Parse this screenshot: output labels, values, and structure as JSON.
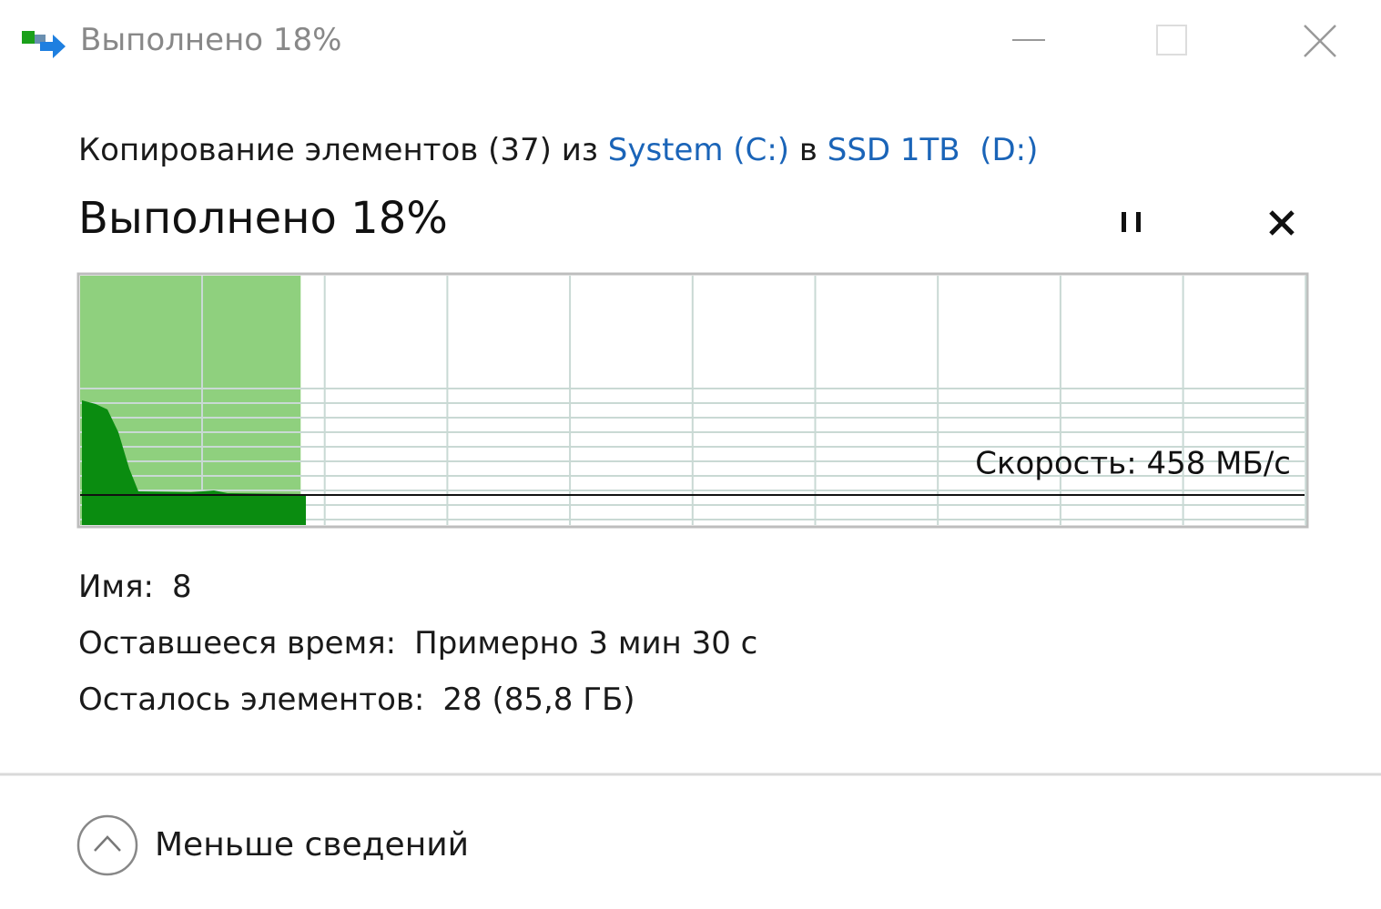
{
  "window": {
    "title": "Выполнено 18%"
  },
  "heading": {
    "prefix": "Копирование элементов (37) из",
    "source": "System (C:)",
    "middle": "в",
    "destination": "SSD 1TB  (D:)"
  },
  "progress": {
    "title": "Выполнено 18%",
    "percent": 18,
    "speed": "Скорость: 458 МБ/с"
  },
  "details": [
    {
      "label": "Имя:",
      "value": "8"
    },
    {
      "label": "Оставшееся время:",
      "value": "Примерно 3 мин 30 с"
    },
    {
      "label": "Осталось элементов:",
      "value": "28 (85,8 ГБ)"
    }
  ],
  "footer": {
    "toggle": "Меньше сведений"
  }
}
